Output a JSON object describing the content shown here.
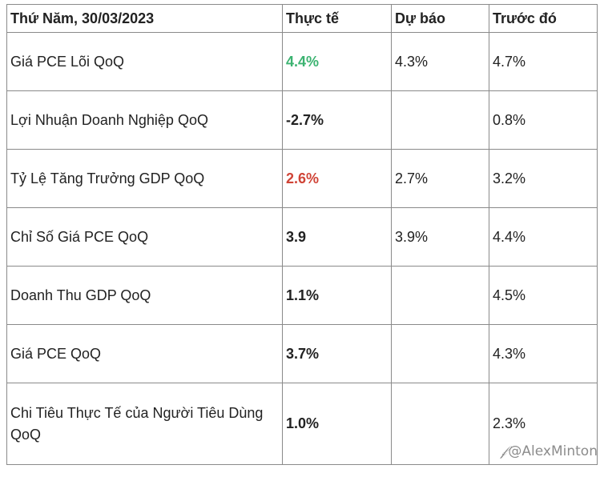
{
  "table": {
    "headers": [
      "Thứ Năm, 30/03/2023",
      "Thực tế",
      "Dự báo",
      "Trước đó"
    ],
    "rows": [
      {
        "indicator": "Giá PCE Lõi QoQ",
        "actual": "4.4%",
        "forecast": "4.3%",
        "previous": "4.7%",
        "actual_color": "#3cb371"
      },
      {
        "indicator": "Lợi Nhuận Doanh Nghiệp QoQ",
        "actual": "-2.7%",
        "forecast": "",
        "previous": "0.8%",
        "actual_color": "#222222"
      },
      {
        "indicator": "Tỷ Lệ Tăng Trưởng GDP QoQ",
        "actual": "2.6%",
        "forecast": "2.7%",
        "previous": "3.2%",
        "actual_color": "#d04437"
      },
      {
        "indicator": "Chỉ Số Giá PCE QoQ",
        "actual": "3.9",
        "forecast": "3.9%",
        "previous": "4.4%",
        "actual_color": "#222222"
      },
      {
        "indicator": "Doanh Thu GDP QoQ",
        "actual": "1.1%",
        "forecast": "",
        "previous": "4.5%",
        "actual_color": "#222222"
      },
      {
        "indicator": "Giá PCE QoQ",
        "actual": "3.7%",
        "forecast": "",
        "previous": "4.3%",
        "actual_color": "#222222"
      },
      {
        "indicator": "Chi Tiêu Thực Tế của Người Tiêu Dùng QoQ",
        "actual": "1.0%",
        "forecast": "",
        "previous": "2.3%",
        "actual_color": "#222222"
      }
    ]
  },
  "watermark": {
    "icon": "zhihu-logo-icon",
    "icon_glyph": "𝒻",
    "text": "@AlexMinton"
  }
}
